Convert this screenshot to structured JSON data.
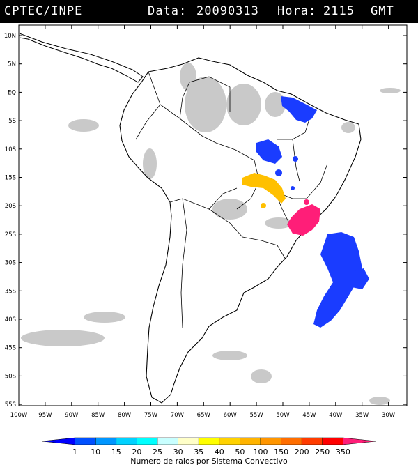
{
  "header": {
    "source": "CPTEC/INPE",
    "data_label": "Data:",
    "date": "20090313",
    "hora_label": "Hora:",
    "time": "2115",
    "timezone": "GMT"
  },
  "map": {
    "lat_labels": [
      "10N",
      "5N",
      "EQ",
      "5S",
      "10S",
      "15S",
      "20S",
      "25S",
      "30S",
      "35S",
      "40S",
      "45S",
      "50S",
      "55S"
    ],
    "lon_labels": [
      "100W",
      "95W",
      "90W",
      "85W",
      "80W",
      "75W",
      "70W",
      "65W",
      "60W",
      "55W",
      "50W",
      "45W",
      "40W",
      "35W",
      "30W"
    ]
  },
  "colorbar": {
    "labels": [
      "1",
      "10",
      "15",
      "20",
      "25",
      "30",
      "35",
      "40",
      "50",
      "100",
      "150",
      "200",
      "250",
      "350"
    ],
    "colors": [
      "#0000ff",
      "#0050ff",
      "#0096ff",
      "#00d2ff",
      "#00ffff",
      "#c8ffff",
      "#ffffc8",
      "#ffff00",
      "#ffd200",
      "#ffb400",
      "#ff9600",
      "#ff6e00",
      "#ff3c00",
      "#ff0000",
      "#ff1e78"
    ],
    "caption": "Numero de raios por Sistema Convectivo"
  },
  "colors": {
    "blue_cells": "#1a3cff",
    "yellow_cells": "#ffc000",
    "magenta_cells": "#ff1e78",
    "cloud_gray": "#c0c0c0"
  }
}
